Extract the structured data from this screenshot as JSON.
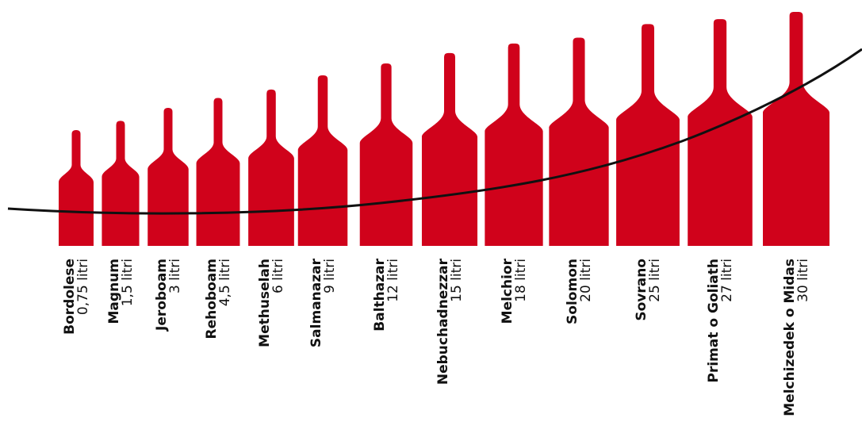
{
  "chart_data": {
    "type": "bar",
    "categories": [
      "Bordolese",
      "Magnum",
      "Jeroboam",
      "Rehoboam",
      "Methuselah",
      "Salmanazar",
      "Balthazar",
      "Nebuchadnezzar",
      "Melchior",
      "Solomon",
      "Sovrano",
      "Primat o Goliath",
      "Melchizedek o Midas"
    ],
    "volume_labels": [
      "0,75 litri",
      "1,5 litri",
      "3 litri",
      "4,5 litri",
      "6 litri",
      "9 litri",
      "12 litri",
      "15 litri",
      "18 litri",
      "20 litri",
      "25 litri",
      "27 litri",
      "30 litri"
    ],
    "values": [
      0.75,
      1.5,
      3,
      4.5,
      6,
      9,
      12,
      15,
      18,
      20,
      25,
      27,
      30
    ],
    "unit": "litri",
    "series_color": "#d0021b",
    "curve_color": "#111111"
  }
}
